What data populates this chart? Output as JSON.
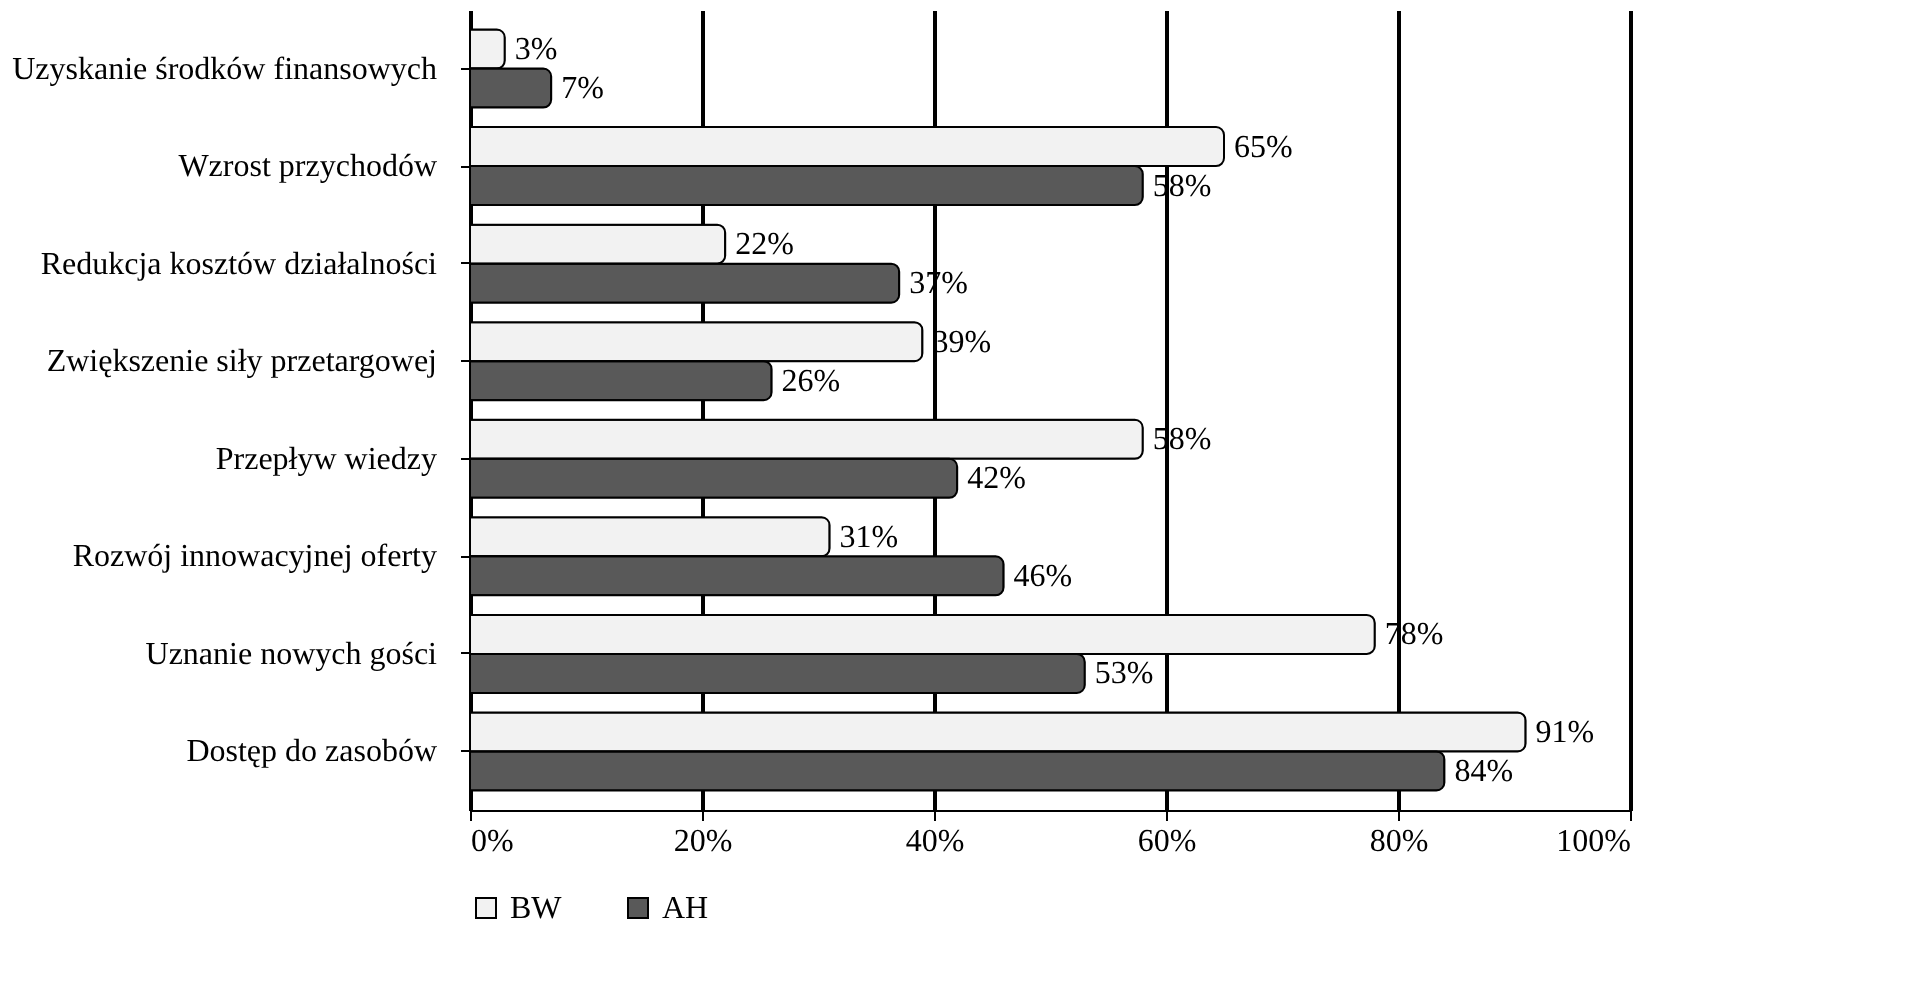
{
  "chart_data": {
    "type": "bar",
    "orientation": "horizontal",
    "categories": [
      "Uzyskanie środków finansowych",
      "Wzrost przychodów",
      "Redukcja kosztów działalności",
      "Zwiększenie siły przetargowej",
      "Przepływ wiedzy",
      "Rozwój innowacyjnej oferty",
      "Uznanie nowych gości",
      "Dostęp do zasobów"
    ],
    "series": [
      {
        "name": "BW",
        "color": "#f2f2f2",
        "values": [
          3,
          65,
          22,
          39,
          58,
          31,
          78,
          91
        ],
        "value_labels": [
          "3%",
          "65%",
          "22%",
          "39%",
          "58%",
          "31%",
          "78%",
          "91%"
        ]
      },
      {
        "name": "AH",
        "color": "#595959",
        "values": [
          7,
          58,
          37,
          26,
          42,
          46,
          53,
          84
        ],
        "value_labels": [
          "7%",
          "58%",
          "37%",
          "26%",
          "42%",
          "46%",
          "53%",
          "84%"
        ]
      }
    ],
    "xlim": [
      0,
      100
    ],
    "xticks": [
      {
        "value": 0,
        "label": "0%"
      },
      {
        "value": 20,
        "label": "20%"
      },
      {
        "value": 40,
        "label": "40%"
      },
      {
        "value": 60,
        "label": "60%"
      },
      {
        "value": 80,
        "label": "80%"
      },
      {
        "value": 100,
        "label": "100%"
      }
    ],
    "grid": "x",
    "legend": "bottom"
  }
}
